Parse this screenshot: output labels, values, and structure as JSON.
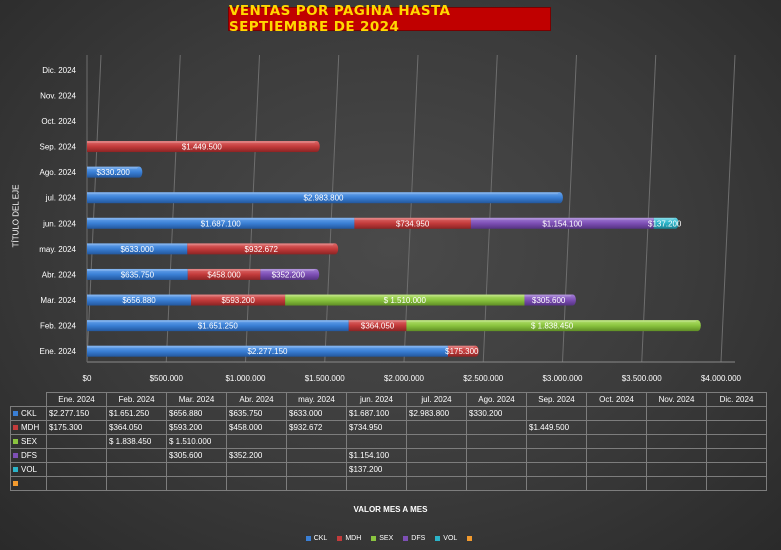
{
  "chart_data": {
    "type": "bar",
    "orientation": "horizontal",
    "stacked": true,
    "title": "VENTAS POR PAGINA HASTA SEPTIEMBRE DE 2024",
    "xlabel": "VALOR MES A MES",
    "ylabel": "TÍTULO DEL EJE",
    "xlim": [
      0,
      4000000
    ],
    "x_ticks": [
      "$0",
      "$500.000",
      "$1.000.000",
      "$1.500.000",
      "$2.000.000",
      "$2.500.000",
      "$3.000.000",
      "$3.500.000",
      "$4.000.000"
    ],
    "x_tick_values": [
      0,
      500000,
      1000000,
      1500000,
      2000000,
      2500000,
      3000000,
      3500000,
      4000000
    ],
    "categories": [
      "Ene. 2024",
      "Feb. 2024",
      "Mar. 2024",
      "Abr. 2024",
      "may. 2024",
      "jun. 2024",
      "jul. 2024",
      "Ago. 2024",
      "Sep. 2024",
      "Oct. 2024",
      "Nov. 2024",
      "Dic. 2024"
    ],
    "grid": true,
    "legend_position": "bottom",
    "series": [
      {
        "name": "CKL",
        "color": "#3a7fd5",
        "values": [
          2277150,
          1651250,
          656880,
          635750,
          633000,
          1687100,
          2983800,
          330200,
          null,
          null,
          null,
          null
        ],
        "labels": [
          "$2.277.150",
          "$1.651.250",
          "$656.880",
          "$635.750",
          "$633.000",
          "$1.687.100",
          "$2.983.800",
          "$330.200",
          "",
          "",
          "",
          ""
        ]
      },
      {
        "name": "MDH",
        "color": "#c33b3b",
        "values": [
          175300,
          364050,
          593200,
          458000,
          932672,
          734950,
          null,
          null,
          1449500,
          null,
          null,
          null
        ],
        "labels": [
          "$175.300",
          "$364.050",
          "$593.200",
          "$458.000",
          "$932.672",
          "$734.950",
          "",
          "",
          "$1.449.500",
          "",
          "",
          ""
        ]
      },
      {
        "name": "SEX",
        "color": "#8ac43f",
        "values": [
          null,
          1838450,
          1510000,
          null,
          null,
          null,
          null,
          null,
          null,
          null,
          null,
          null
        ],
        "labels": [
          "",
          "$ 1.838.450",
          "$ 1.510.000",
          "",
          "",
          "",
          "",
          "",
          "",
          "",
          "",
          ""
        ]
      },
      {
        "name": "DFS",
        "color": "#7d4fb5",
        "values": [
          null,
          null,
          305600,
          352200,
          null,
          1154100,
          null,
          null,
          null,
          null,
          null,
          null
        ],
        "labels": [
          "",
          "",
          "$305.600",
          "$352.200",
          "",
          "$1.154.100",
          "",
          "",
          "",
          "",
          "",
          ""
        ]
      },
      {
        "name": "VOL",
        "color": "#2bb3c8",
        "values": [
          null,
          null,
          null,
          null,
          null,
          137200,
          null,
          null,
          null,
          null,
          null,
          null
        ],
        "labels": [
          "",
          "",
          "",
          "",
          "",
          "$137.200",
          "",
          "",
          "",
          "",
          "",
          ""
        ]
      },
      {
        "name": "",
        "color": "#f29a2e",
        "values": [
          null,
          null,
          null,
          null,
          null,
          null,
          null,
          null,
          null,
          null,
          null,
          null
        ],
        "labels": [
          "",
          "",
          "",
          "",
          "",
          "",
          "",
          "",
          "",
          "",
          "",
          ""
        ]
      }
    ]
  }
}
